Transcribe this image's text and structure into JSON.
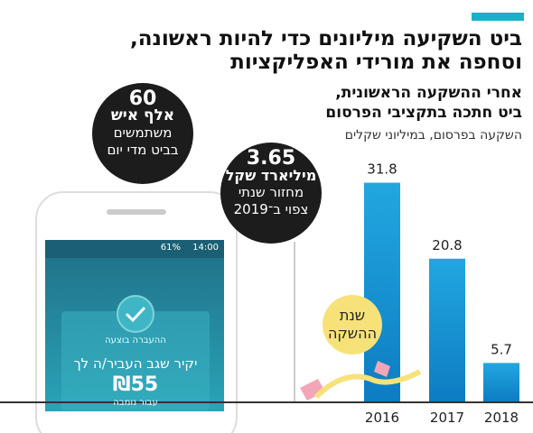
{
  "chart_data": {
    "type": "bar",
    "title": [
      "ביט השקיעה מיליונים כדי להיות ראשונה,",
      "וסחפה את מורידי האפליקציות"
    ],
    "subtitle": [
      "אחרי ההשקעה הראשונית,",
      "ביט חתכה בתקציבי הפרסום"
    ],
    "y_label": "השקעה בפרסום, במיליוני שקלים",
    "categories": [
      "2016",
      "2017",
      "2018"
    ],
    "values": [
      31.8,
      20.8,
      5.7
    ],
    "color": "#1a93d4",
    "ylim": [
      0,
      32
    ],
    "annotations": {
      "users": [
        "60",
        "אלף איש",
        "משתמשים",
        "בביט מדי יום"
      ],
      "turnover": [
        "3.65",
        "מיליארד שקל",
        "מחזור שנתי",
        "צפוי ב־2019"
      ],
      "launch": [
        "שנת",
        "ההשקה"
      ]
    }
  },
  "phone": {
    "time": "14:00",
    "battery": "61%",
    "status": "ההעברה בוצעה",
    "message": "יקיר שגב העביר/ה לך",
    "amount": "₪55",
    "note": "עבור נומבה"
  }
}
